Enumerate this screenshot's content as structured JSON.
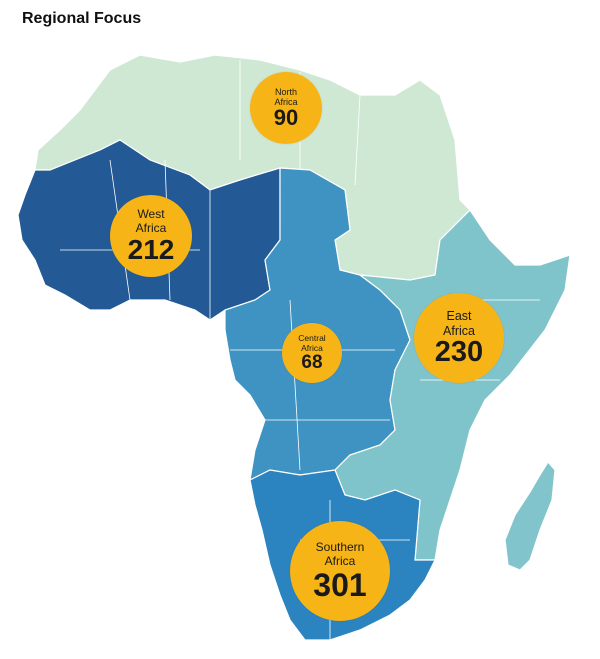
{
  "title": "Regional Focus",
  "colors": {
    "north_africa": "#cfe8d4",
    "west_africa": "#235a96",
    "central_africa": "#3e93c3",
    "east_africa": "#7fc4ca",
    "southern_africa": "#2b84bf",
    "madagascar": "#82c4cb",
    "bubble": "#f6b416",
    "border": "#ffffff"
  },
  "regions": [
    {
      "key": "north",
      "name_line1": "North",
      "name_line2": "Africa",
      "value": "90"
    },
    {
      "key": "west",
      "name_line1": "West",
      "name_line2": "Africa",
      "value": "212"
    },
    {
      "key": "central",
      "name_line1": "Central",
      "name_line2": "Africa",
      "value": "68"
    },
    {
      "key": "east",
      "name_line1": "East",
      "name_line2": "Africa",
      "value": "230"
    },
    {
      "key": "southern",
      "name_line1": "Southern",
      "name_line2": "Africa",
      "value": "301"
    }
  ]
}
